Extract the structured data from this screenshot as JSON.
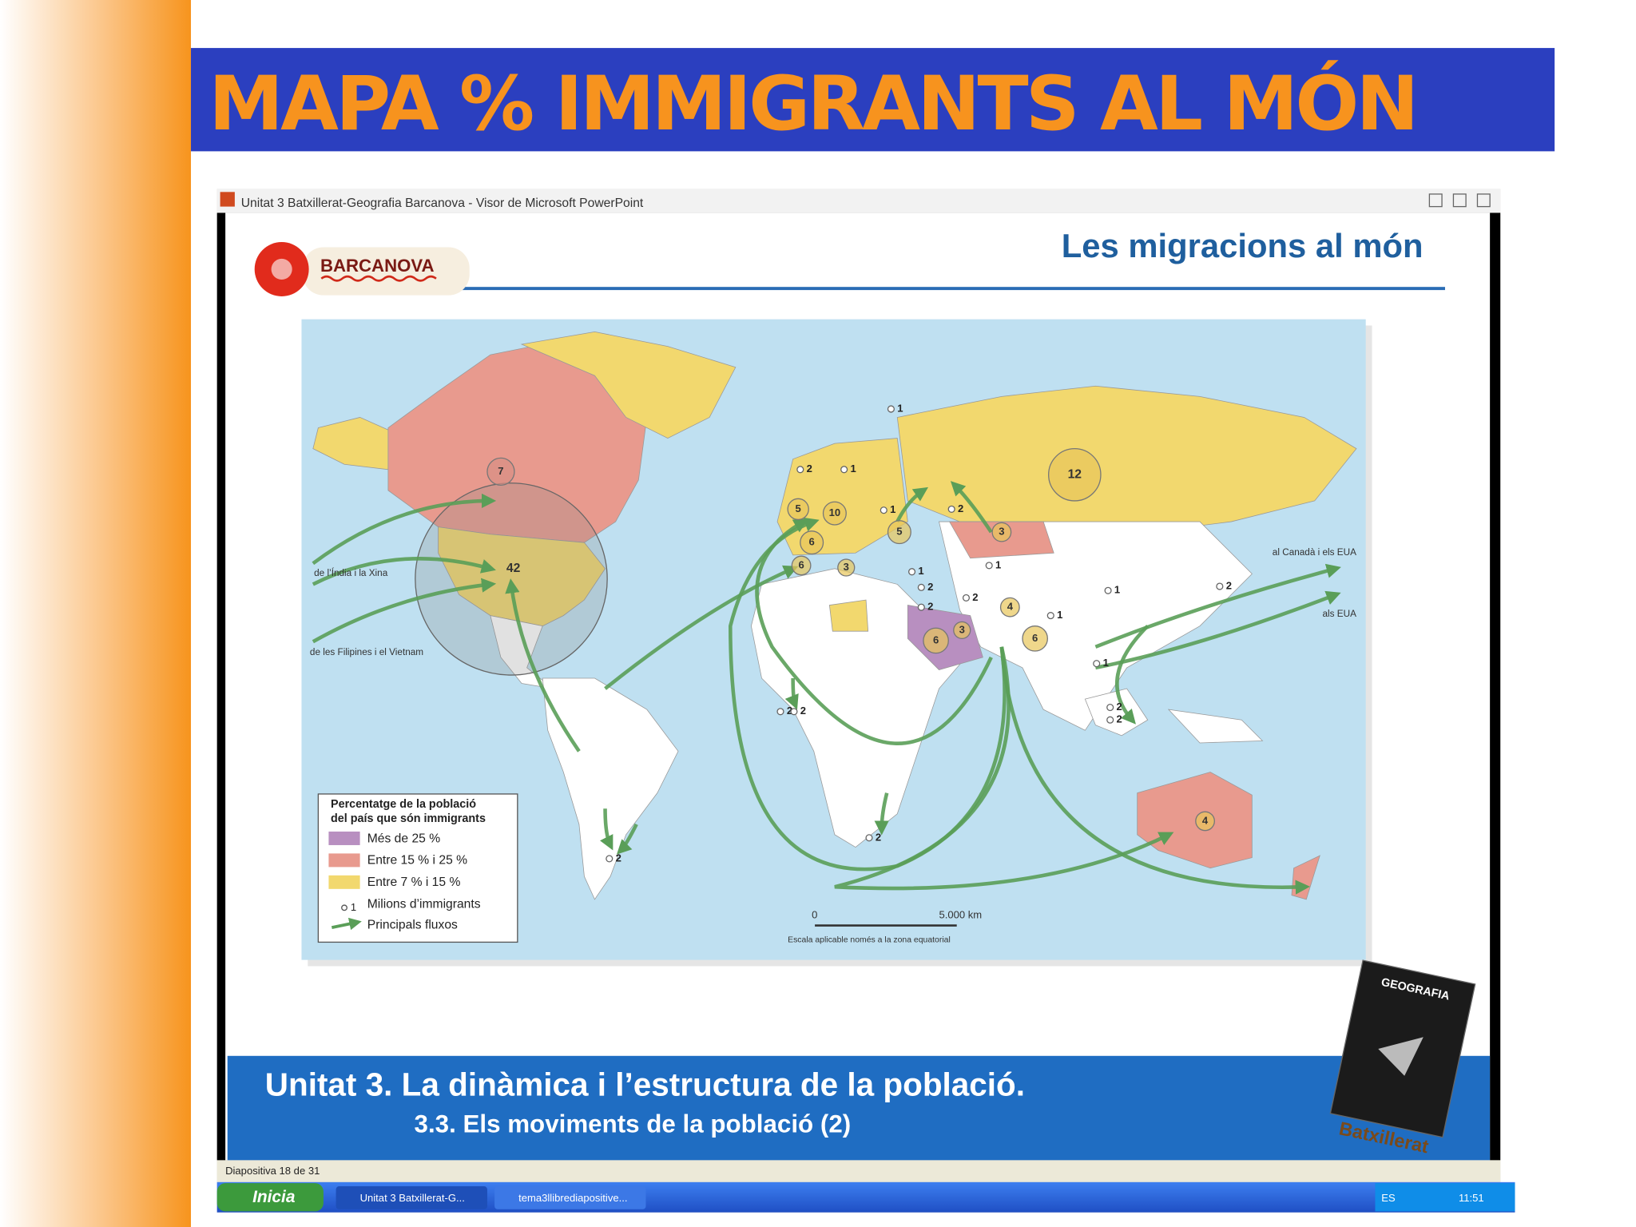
{
  "slide": {
    "title": "MAPA % IMMIGRANTS AL MÓN"
  },
  "window": {
    "title": "Unitat 3 Batxillerat-Geografia Barcanova - Visor de Microsoft PowerPoint",
    "status": "Diapositiva 18 de 31"
  },
  "inner_slide": {
    "heading": "Les migracions al món",
    "logo": "BARCANOVA",
    "band_title": "Unitat 3. La dinàmica i l’estructura de la població.",
    "band_subtitle": "3.3. Els moviments de la població (2)",
    "book": {
      "title": "GEOGRAFIA",
      "series": "Batxillerat"
    }
  },
  "map": {
    "legend": {
      "title": [
        "Percentatge de la població",
        "del país que són immigrants"
      ],
      "items": [
        "Més de 25 %",
        "Entre 15 % i 25 %",
        "Entre 7 % i 15 %",
        "Milions d’immigrants",
        "Principals fluxos"
      ],
      "sample_count": 1
    },
    "flow_labels": [
      "de l’Índia i la Xina",
      "de les Filipines i el Vietnam",
      "al Canadà i els EUA",
      "als EUA"
    ],
    "scale": {
      "start": "0",
      "end": "5.000 km",
      "note": "Escala aplicable només a la zona equatorial"
    },
    "bubbles": [
      42,
      12,
      7,
      3,
      6,
      3,
      4,
      6,
      4,
      5,
      10,
      6,
      6,
      5,
      3
    ],
    "small_counts": [
      1,
      2,
      1,
      1,
      1,
      2,
      2,
      2,
      1,
      1,
      1,
      2,
      1,
      2,
      2,
      2,
      2,
      2,
      2,
      2
    ]
  },
  "taskbar": {
    "start": "Inicia",
    "tasks": [
      "Unitat 3 Batxillerat-G...",
      "tema3llibrediapositive..."
    ],
    "lang": "ES",
    "clock": "11:51"
  }
}
